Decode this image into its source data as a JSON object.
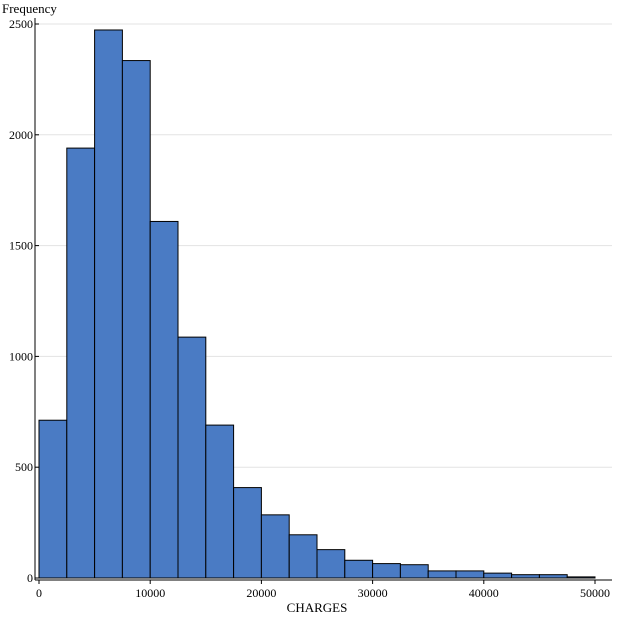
{
  "chart_data": {
    "type": "bar",
    "subtype": "histogram",
    "xlabel": "CHARGES",
    "ylabel": "Frequency",
    "title": "",
    "bin_width": 2500,
    "bin_start": 0,
    "values": [
      712,
      1940,
      2473,
      2335,
      1609,
      1087,
      690,
      408,
      285,
      195,
      128,
      80,
      65,
      60,
      32,
      32,
      22,
      15,
      15,
      5
    ],
    "xlim": [
      0,
      50000
    ],
    "ylim": [
      0,
      2500
    ],
    "x_ticks": [
      0,
      10000,
      20000,
      30000,
      40000,
      50000
    ],
    "x_tick_labels": [
      "0",
      "10000",
      "20000",
      "30000",
      "40000",
      "50000"
    ],
    "y_ticks": [
      0,
      500,
      1000,
      1500,
      2000,
      2500
    ],
    "y_tick_labels": [
      "0",
      "500",
      "1000",
      "1500",
      "2000",
      "2500"
    ],
    "grid": "horizontal",
    "bar_color": "#4a7bc4",
    "bar_edge_color": "#000000",
    "grid_color": "#e3e3e3"
  }
}
